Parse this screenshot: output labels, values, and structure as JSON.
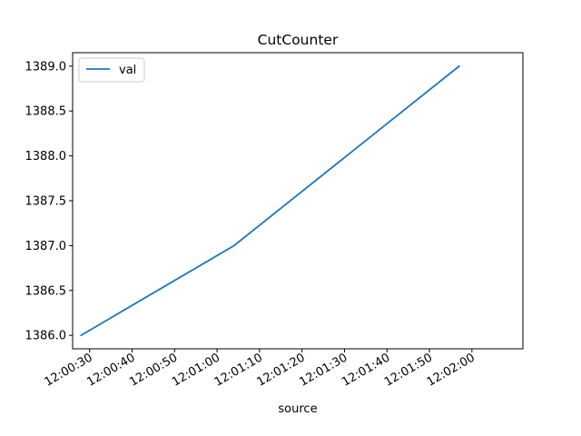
{
  "chart_data": {
    "type": "line",
    "title": "CutCounter",
    "xlabel": "source",
    "ylabel": "",
    "x_ticks": [
      "12:00:30",
      "12:00:40",
      "12:00:50",
      "12:01:00",
      "12:01:10",
      "12:01:20",
      "12:01:30",
      "12:01:40",
      "12:01:50",
      "12:02:00"
    ],
    "y_ticks": [
      "1386.0",
      "1386.5",
      "1387.0",
      "1387.5",
      "1388.0",
      "1388.5",
      "1389.0"
    ],
    "xlim": [
      "12:00:26",
      "12:02:12"
    ],
    "ylim": [
      1385.85,
      1389.15
    ],
    "legend_position": "upper left",
    "grid": false,
    "series": [
      {
        "name": "val",
        "color": "#1f77b4",
        "x": [
          "12:00:28",
          "12:01:04",
          "12:01:57"
        ],
        "y": [
          1386.0,
          1387.0,
          1389.0
        ]
      }
    ]
  }
}
